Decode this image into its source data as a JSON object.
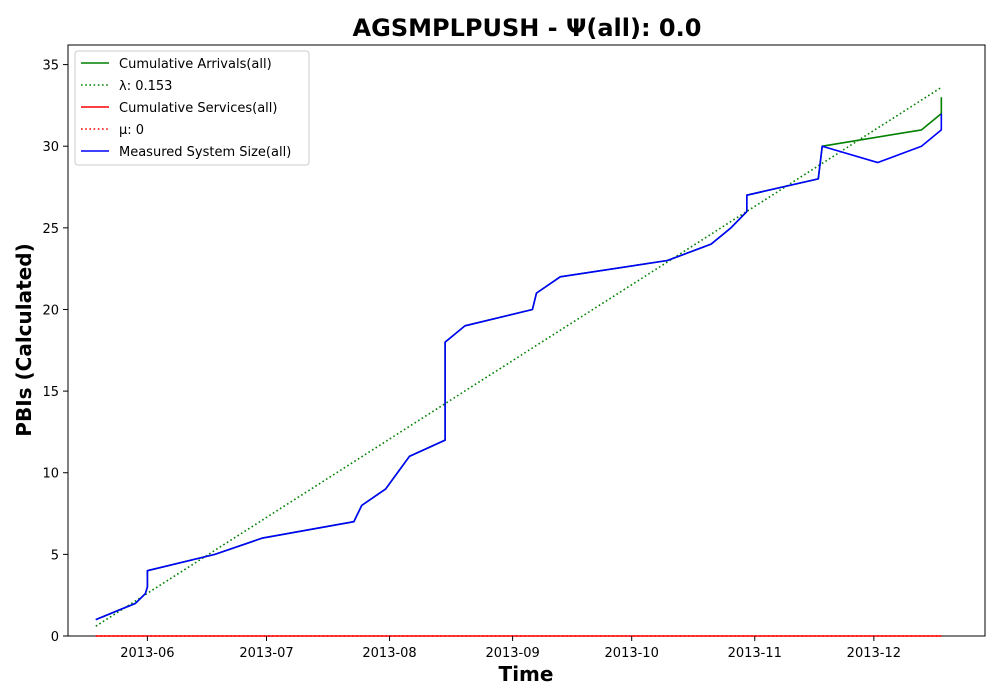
{
  "chart_data": {
    "type": "line",
    "title": "AGSMPLPUSH -  Ψ(all): 0.0",
    "xlabel": "Time",
    "ylabel": "PBIs (Calculated)",
    "x_type": "date",
    "xlim": [
      "2013-05-12",
      "2013-12-29"
    ],
    "ylim": [
      0,
      36.2
    ],
    "xticks": [
      "2013-06",
      "2013-07",
      "2013-08",
      "2013-09",
      "2013-10",
      "2013-11",
      "2013-12"
    ],
    "yticks": [
      0,
      5,
      10,
      15,
      20,
      25,
      30,
      35
    ],
    "grid": false,
    "legend_position": "top-left",
    "series": [
      {
        "name": "Cumulative Arrivals(all)",
        "color": "#008000",
        "style": "solid",
        "points": [
          [
            "2013-05-19",
            1
          ],
          [
            "2013-05-29",
            2
          ],
          [
            "2013-05-31 12:00",
            2.6
          ],
          [
            "2013-06-01",
            3
          ],
          [
            "2013-06-01",
            4
          ],
          [
            "2013-06-18",
            5
          ],
          [
            "2013-06-30",
            6
          ],
          [
            "2013-07-23",
            7
          ],
          [
            "2013-07-25",
            8
          ],
          [
            "2013-07-31",
            9
          ],
          [
            "2013-08-03",
            10
          ],
          [
            "2013-08-06",
            11
          ],
          [
            "2013-08-15",
            12
          ],
          [
            "2013-08-15",
            18
          ],
          [
            "2013-08-20",
            19
          ],
          [
            "2013-09-06",
            20
          ],
          [
            "2013-09-07",
            21
          ],
          [
            "2013-09-13",
            22
          ],
          [
            "2013-10-10",
            23
          ],
          [
            "2013-10-21",
            24
          ],
          [
            "2013-10-26",
            25
          ],
          [
            "2013-10-30",
            26
          ],
          [
            "2013-10-30",
            27
          ],
          [
            "2013-11-17",
            28
          ],
          [
            "2013-11-18",
            30
          ],
          [
            "2013-12-13",
            31
          ],
          [
            "2013-12-18",
            32
          ],
          [
            "2013-12-18",
            33
          ]
        ]
      },
      {
        "name": "λ: 0.153",
        "color": "#008000",
        "style": "dotted",
        "points": [
          [
            "2013-05-19",
            0.6
          ],
          [
            "2013-12-18",
            33.6
          ]
        ]
      },
      {
        "name": "Cumulative Services(all)",
        "color": "#ff0000",
        "style": "solid",
        "points": [
          [
            "2013-05-19",
            0
          ],
          [
            "2013-12-18",
            0
          ]
        ]
      },
      {
        "name": "μ: 0",
        "color": "#ff0000",
        "style": "dotted",
        "points": [
          [
            "2013-05-19",
            0
          ],
          [
            "2013-12-18",
            0
          ]
        ]
      },
      {
        "name": "Measured System Size(all)",
        "color": "#0000ff",
        "style": "solid",
        "points": [
          [
            "2013-05-19",
            1
          ],
          [
            "2013-05-29",
            2
          ],
          [
            "2013-05-31 12:00",
            2.6
          ],
          [
            "2013-06-01",
            3
          ],
          [
            "2013-06-01",
            4
          ],
          [
            "2013-06-18",
            5
          ],
          [
            "2013-06-30",
            6
          ],
          [
            "2013-07-23",
            7
          ],
          [
            "2013-07-25",
            8
          ],
          [
            "2013-07-31",
            9
          ],
          [
            "2013-08-03",
            10
          ],
          [
            "2013-08-06",
            11
          ],
          [
            "2013-08-15",
            12
          ],
          [
            "2013-08-15",
            18
          ],
          [
            "2013-08-20",
            19
          ],
          [
            "2013-09-06",
            20
          ],
          [
            "2013-09-07",
            21
          ],
          [
            "2013-09-13",
            22
          ],
          [
            "2013-10-10",
            23
          ],
          [
            "2013-10-21",
            24
          ],
          [
            "2013-10-26",
            25
          ],
          [
            "2013-10-30",
            26
          ],
          [
            "2013-10-30",
            27
          ],
          [
            "2013-11-17",
            28
          ],
          [
            "2013-11-18",
            30
          ],
          [
            "2013-12-02",
            29
          ],
          [
            "2013-12-13",
            30
          ],
          [
            "2013-12-18",
            31
          ],
          [
            "2013-12-18",
            32
          ]
        ]
      }
    ]
  }
}
